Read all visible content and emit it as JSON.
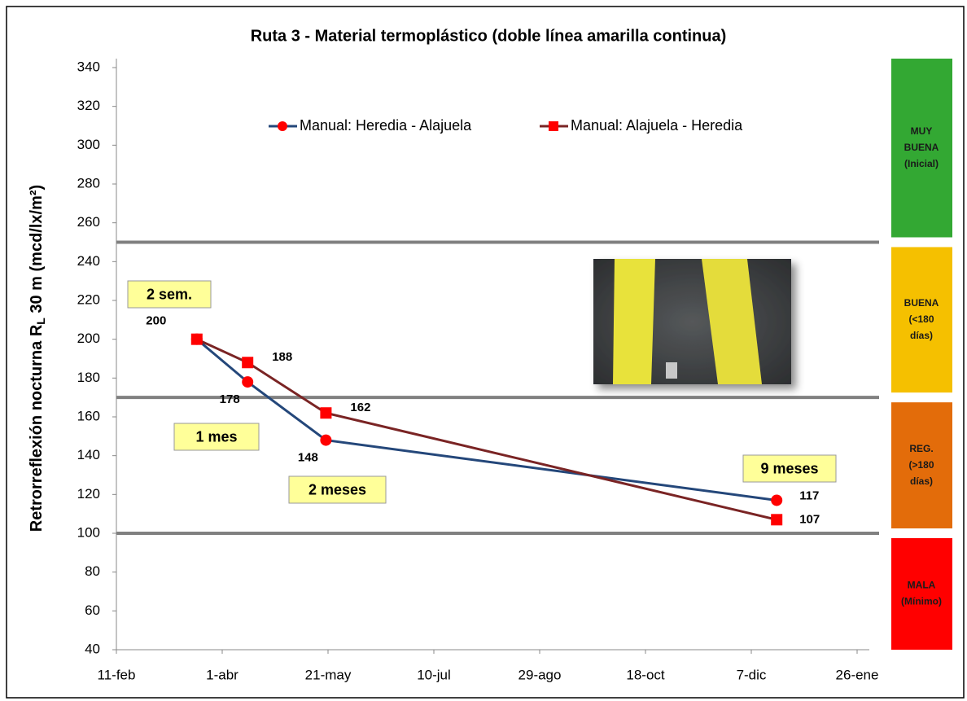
{
  "chart_data": {
    "type": "line",
    "title": "Ruta 3 - Material termoplástico (doble línea amarilla continua)",
    "y_label": "Retrorreflexión nocturna R",
    "y_label_sub": "L",
    "y_label_end": " 30 m (mcd/lx/m²)",
    "x": [
      38,
      62,
      99,
      312
    ],
    "xlim": [
      0,
      350
    ],
    "xticks": [
      {
        "value": 0,
        "label": "11-feb"
      },
      {
        "value": 50,
        "label": "1-abr"
      },
      {
        "value": 100,
        "label": "21-may"
      },
      {
        "value": 150,
        "label": "10-jul"
      },
      {
        "value": 200,
        "label": "29-ago"
      },
      {
        "value": 250,
        "label": "18-oct"
      },
      {
        "value": 300,
        "label": "7-dic"
      },
      {
        "value": 350,
        "label": "26-ene"
      }
    ],
    "ylim": [
      40,
      340
    ],
    "yticks": [
      40,
      60,
      80,
      100,
      120,
      140,
      160,
      180,
      200,
      220,
      240,
      260,
      280,
      300,
      320,
      340
    ],
    "series": [
      {
        "name": "Manual: Heredia - Alajuela",
        "color": "#24477a",
        "marker": "circle",
        "marker_color": "#ff0000",
        "values": [
          200,
          178,
          148,
          117
        ]
      },
      {
        "name": "Manual: Alajuela - Heredia",
        "color": "#7a2424",
        "marker": "square",
        "marker_color": "#ff0000",
        "values": [
          200,
          188,
          162,
          107
        ]
      }
    ],
    "thresholds": [
      250,
      170,
      100
    ],
    "zones": [
      {
        "lines": [
          "MUY",
          "BUENA",
          "(Inicial)"
        ],
        "color": "#33a833"
      },
      {
        "lines": [
          "BUENA",
          "(<180",
          "días)"
        ],
        "color": "#f5c000"
      },
      {
        "lines": [
          "REG.",
          "(>180",
          "días)"
        ],
        "color": "#e36c0a"
      },
      {
        "lines": [
          "MALA",
          "(Mínimo)"
        ],
        "color": "#ff0000"
      }
    ],
    "annotations": [
      "2 sem.",
      "1 mes",
      "2 meses",
      "9 meses"
    ]
  }
}
